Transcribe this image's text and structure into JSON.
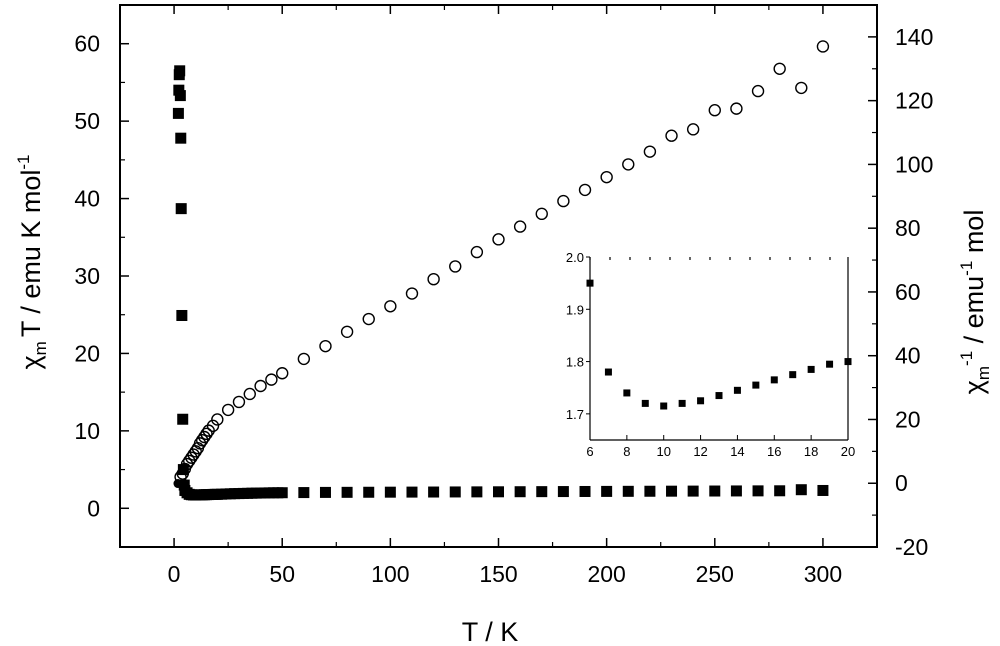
{
  "chart_data": [
    {
      "type": "scatter",
      "xlabel": "T / K",
      "ylabel_left": {
        "main": "χ",
        "sub": "m",
        "rest": "T / emu K mol",
        "sup": "-1"
      },
      "ylabel_right": {
        "main": "χ",
        "sub": "m",
        "sup": "-1",
        "rest": " / emu",
        "sup2": "-1",
        "rest2": " mol"
      },
      "xlim": [
        -25,
        325
      ],
      "ylim_left": [
        -5,
        65
      ],
      "ylim_right": [
        -20,
        150
      ],
      "x_ticks": [
        "0",
        "50",
        "100",
        "150",
        "200",
        "250",
        "300"
      ],
      "y_ticks_left": [
        "0",
        "10",
        "20",
        "30",
        "40",
        "50",
        "60"
      ],
      "y_ticks_right": [
        "-20",
        "0",
        "20",
        "40",
        "60",
        "80",
        "100",
        "120",
        "140"
      ],
      "series": [
        {
          "marker": "filled-square",
          "axis": "left",
          "points": [
            [
              1.8,
              3.2
            ],
            [
              2.0,
              51.0
            ],
            [
              2.2,
              54.0
            ],
            [
              2.4,
              56.0
            ],
            [
              2.6,
              56.5
            ],
            [
              2.9,
              53.3
            ],
            [
              3.1,
              47.8
            ],
            [
              3.3,
              38.7
            ],
            [
              3.6,
              24.9
            ],
            [
              4.0,
              11.5
            ],
            [
              4.3,
              5.0
            ],
            [
              4.7,
              3.0
            ],
            [
              5.0,
              2.3
            ],
            [
              6,
              2.0
            ],
            [
              7,
              1.8
            ],
            [
              8,
              1.75
            ],
            [
              9,
              1.72
            ],
            [
              10,
              1.71
            ],
            [
              11,
              1.72
            ],
            [
              12,
              1.73
            ],
            [
              13,
              1.74
            ],
            [
              14,
              1.75
            ],
            [
              15,
              1.76
            ],
            [
              16,
              1.77
            ],
            [
              17,
              1.78
            ],
            [
              18,
              1.79
            ],
            [
              19,
              1.8
            ],
            [
              20,
              1.8
            ],
            [
              22,
              1.82
            ],
            [
              24,
              1.85
            ],
            [
              26,
              1.87
            ],
            [
              28,
              1.89
            ],
            [
              30,
              1.9
            ],
            [
              32,
              1.92
            ],
            [
              34,
              1.93
            ],
            [
              36,
              1.95
            ],
            [
              38,
              1.96
            ],
            [
              40,
              1.97
            ],
            [
              42,
              1.98
            ],
            [
              44,
              1.99
            ],
            [
              46,
              2.0
            ],
            [
              48,
              2.0
            ],
            [
              50,
              2.01
            ],
            [
              60,
              2.03
            ],
            [
              70,
              2.05
            ],
            [
              80,
              2.06
            ],
            [
              90,
              2.07
            ],
            [
              100,
              2.08
            ],
            [
              110,
              2.09
            ],
            [
              120,
              2.1
            ],
            [
              130,
              2.11
            ],
            [
              140,
              2.12
            ],
            [
              150,
              2.13
            ],
            [
              160,
              2.14
            ],
            [
              170,
              2.15
            ],
            [
              180,
              2.16
            ],
            [
              190,
              2.17
            ],
            [
              200,
              2.18
            ],
            [
              210,
              2.19
            ],
            [
              220,
              2.2
            ],
            [
              230,
              2.21
            ],
            [
              240,
              2.22
            ],
            [
              250,
              2.23
            ],
            [
              260,
              2.24
            ],
            [
              270,
              2.25
            ],
            [
              280,
              2.26
            ],
            [
              290,
              2.4
            ],
            [
              300,
              2.3
            ]
          ]
        },
        {
          "marker": "open-circle",
          "axis": "right",
          "points": [
            [
              3,
              2
            ],
            [
              4,
              3
            ],
            [
              5,
              4.5
            ],
            [
              6,
              6
            ],
            [
              7,
              7
            ],
            [
              8,
              8
            ],
            [
              9,
              9
            ],
            [
              10,
              10
            ],
            [
              11,
              11
            ],
            [
              12,
              12.5
            ],
            [
              13,
              13.5
            ],
            [
              14,
              14.5
            ],
            [
              15,
              15.5
            ],
            [
              16,
              16.5
            ],
            [
              18,
              18
            ],
            [
              20,
              20
            ],
            [
              25,
              23
            ],
            [
              30,
              25.5
            ],
            [
              35,
              28
            ],
            [
              40,
              30.5
            ],
            [
              45,
              32.5
            ],
            [
              50,
              34.5
            ],
            [
              60,
              39
            ],
            [
              70,
              43
            ],
            [
              80,
              47.5
            ],
            [
              90,
              51.5
            ],
            [
              100,
              55.5
            ],
            [
              110,
              59.5
            ],
            [
              120,
              64
            ],
            [
              130,
              68
            ],
            [
              140,
              72.5
            ],
            [
              150,
              76.5
            ],
            [
              160,
              80.5
            ],
            [
              170,
              84.5
            ],
            [
              180,
              88.5
            ],
            [
              190,
              92
            ],
            [
              200,
              96
            ],
            [
              210,
              100
            ],
            [
              220,
              104
            ],
            [
              230,
              109
            ],
            [
              240,
              111
            ],
            [
              250,
              117
            ],
            [
              260,
              117.5
            ],
            [
              270,
              123
            ],
            [
              280,
              130
            ],
            [
              290,
              124
            ],
            [
              300,
              137
            ]
          ]
        }
      ]
    },
    {
      "type": "scatter",
      "inset": true,
      "xlim": [
        6,
        20
      ],
      "ylim": [
        1.65,
        2.0
      ],
      "x_ticks": [
        "6",
        "8",
        "10",
        "12",
        "14",
        "16",
        "18",
        "20"
      ],
      "y_ticks": [
        "1.7",
        "1.8",
        "1.9",
        "2.0"
      ],
      "series": [
        {
          "marker": "filled-square",
          "points": [
            [
              6,
              1.95
            ],
            [
              7,
              1.78
            ],
            [
              8,
              1.74
            ],
            [
              9,
              1.72
            ],
            [
              10,
              1.715
            ],
            [
              11,
              1.72
            ],
            [
              12,
              1.725
            ],
            [
              13,
              1.735
            ],
            [
              14,
              1.745
            ],
            [
              15,
              1.755
            ],
            [
              16,
              1.765
            ],
            [
              17,
              1.775
            ],
            [
              18,
              1.785
            ],
            [
              19,
              1.795
            ],
            [
              20,
              1.8
            ]
          ]
        }
      ]
    }
  ]
}
